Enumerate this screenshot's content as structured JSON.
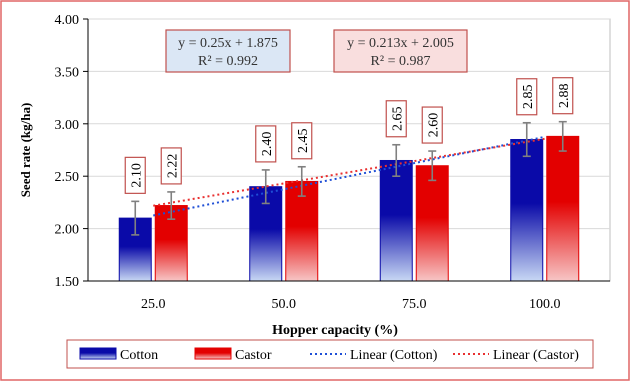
{
  "chart_data": {
    "type": "bar",
    "title": "",
    "xlabel": "Hopper capacity (%)",
    "ylabel": "Seed rate (kg/ha)",
    "ylim": [
      1.5,
      4.0
    ],
    "yticks": [
      "1.50",
      "2.00",
      "2.50",
      "3.00",
      "3.50",
      "4.00"
    ],
    "categories": [
      "25.0",
      "50.0",
      "75.0",
      "100.0"
    ],
    "grid": "horizontal",
    "legend_position": "bottom",
    "series": [
      {
        "name": "Cotton",
        "values": [
          2.1,
          2.4,
          2.65,
          2.85
        ],
        "labels": [
          "2.10",
          "2.40",
          "2.65",
          "2.85"
        ],
        "error": [
          0.16,
          0.16,
          0.15,
          0.16
        ],
        "color": "#0a0aa8",
        "color_light": "#c8d8f4"
      },
      {
        "name": "Castor",
        "values": [
          2.22,
          2.45,
          2.6,
          2.88
        ],
        "labels": [
          "2.22",
          "2.45",
          "2.60",
          "2.88"
        ],
        "error": [
          0.13,
          0.14,
          0.14,
          0.14
        ],
        "color": "#e30000",
        "color_light": "#f7c6c6"
      }
    ],
    "trendlines": [
      {
        "name": "Linear (Cotton)",
        "slope": 0.25,
        "intercept": 1.875,
        "equation": "y = 0.25x + 1.875",
        "r2": "R² = 0.992",
        "color": "#1f4fd6",
        "box_bg": "#dbe7f5"
      },
      {
        "name": "Linear (Castor)",
        "slope": 0.213,
        "intercept": 2.005,
        "equation": "y = 0.213x + 2.005",
        "r2": "R² = 0.987",
        "color": "#e83030",
        "box_bg": "#f9dede"
      }
    ],
    "legend": [
      "Cotton",
      "Castor",
      "Linear (Cotton)",
      "Linear (Castor)"
    ]
  },
  "colors": {
    "frame": "#e06666",
    "label_border": "#c0504d",
    "plot_bg": "#ffffff",
    "grid": "#d9d9d9",
    "error_bar": "#808080"
  }
}
